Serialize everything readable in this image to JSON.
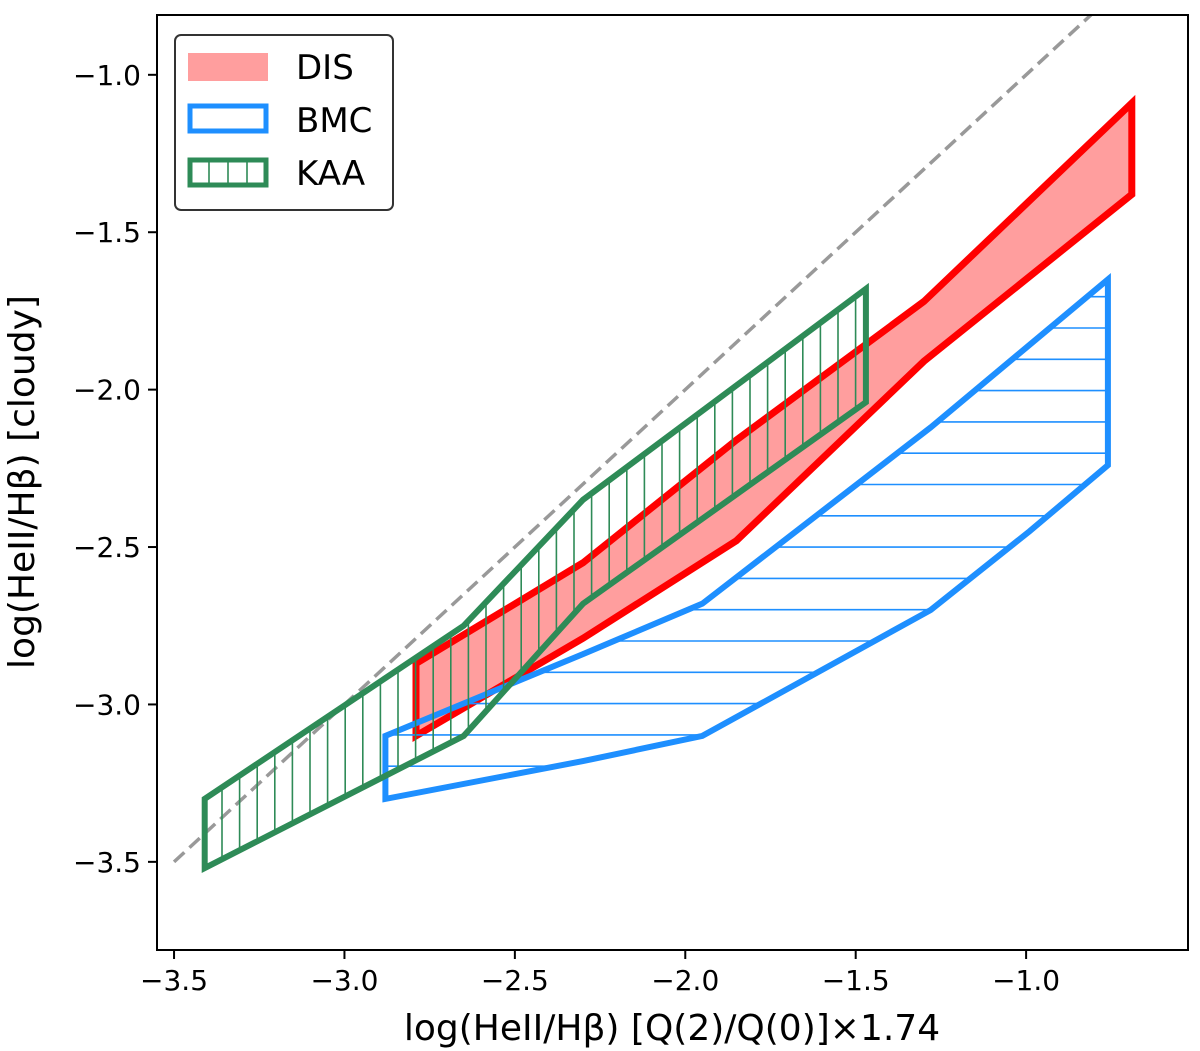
{
  "chart_data": {
    "type": "area",
    "title": "",
    "xlabel": "log(HeII/Hβ) [Q(2)/Q(0)]×1.74",
    "ylabel": "log(HeII/Hβ) [cloudy]",
    "xlim": [
      -3.55,
      -0.525
    ],
    "ylim": [
      -3.78,
      -0.81
    ],
    "xticks": [
      -3.5,
      -3.0,
      -2.5,
      -2.0,
      -1.5,
      -1.0
    ],
    "xtick_labels": [
      "−3.5",
      "−3.0",
      "−2.5",
      "−2.0",
      "−1.5",
      "−1.0"
    ],
    "yticks": [
      -3.5,
      -3.0,
      -2.5,
      -2.0,
      -1.5,
      -1.0
    ],
    "ytick_labels": [
      "−3.5",
      "−3.0",
      "−2.5",
      "−2.0",
      "−1.5",
      "−1.0"
    ],
    "grid": false,
    "legend_position": "top-left",
    "reference_line": {
      "name": "one-to-one",
      "x": [
        -3.5,
        -0.7
      ],
      "y": [
        -3.5,
        -0.7
      ],
      "color": "#999999",
      "style": "dashed"
    },
    "series": [
      {
        "name": "DIS",
        "style": "filled",
        "edge_color": "#ff0000",
        "fill_color": "#ff9e9e",
        "hatch": "none",
        "polygon": [
          [
            -2.79,
            -3.1
          ],
          [
            -2.79,
            -2.87
          ],
          [
            -2.3,
            -2.55
          ],
          [
            -1.85,
            -2.16
          ],
          [
            -1.3,
            -1.72
          ],
          [
            -0.69,
            -1.09
          ],
          [
            -0.69,
            -1.38
          ],
          [
            -1.3,
            -1.91
          ],
          [
            -1.85,
            -2.48
          ],
          [
            -2.3,
            -2.79
          ]
        ]
      },
      {
        "name": "BMC",
        "style": "hatched",
        "edge_color": "#1e8fff",
        "fill_color": "none",
        "hatch": "horizontal",
        "polygon": [
          [
            -2.88,
            -3.1
          ],
          [
            -2.88,
            -3.3
          ],
          [
            -2.3,
            -3.18
          ],
          [
            -1.95,
            -3.1
          ],
          [
            -1.28,
            -2.7
          ],
          [
            -0.99,
            -2.45
          ],
          [
            -0.76,
            -2.24
          ],
          [
            -0.76,
            -1.65
          ],
          [
            -1.28,
            -2.12
          ],
          [
            -1.95,
            -2.68
          ],
          [
            -2.3,
            -2.84
          ]
        ]
      },
      {
        "name": "KAA",
        "style": "hatched",
        "edge_color": "#2e8b57",
        "fill_color": "none",
        "hatch": "vertical",
        "polygon": [
          [
            -3.41,
            -3.3
          ],
          [
            -3.41,
            -3.52
          ],
          [
            -2.65,
            -3.1
          ],
          [
            -2.3,
            -2.68
          ],
          [
            -1.47,
            -2.04
          ],
          [
            -1.47,
            -1.68
          ],
          [
            -2.3,
            -2.35
          ],
          [
            -2.65,
            -2.75
          ]
        ]
      }
    ]
  }
}
